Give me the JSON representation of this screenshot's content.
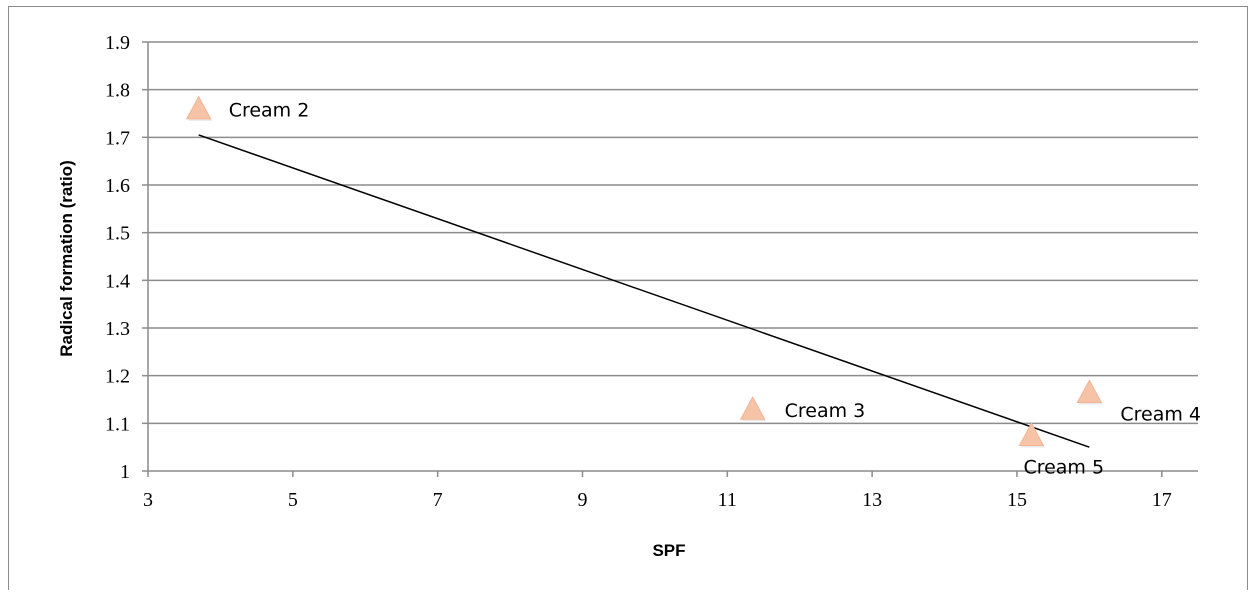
{
  "chart_data": {
    "type": "scatter",
    "title": "",
    "xlabel": "SPF",
    "ylabel": "Radical formation (ratio)",
    "xlim": [
      3,
      17.5
    ],
    "ylim": [
      1,
      1.9
    ],
    "xticks": [
      3,
      5,
      7,
      9,
      11,
      13,
      15,
      17
    ],
    "yticks": [
      1,
      1.1,
      1.2,
      1.3,
      1.4,
      1.5,
      1.6,
      1.7,
      1.8,
      1.9
    ],
    "ytick_labels": [
      "1",
      "1.1",
      "1.2",
      "1.3",
      "1.4",
      "1.5",
      "1.6",
      "1.7",
      "1.8",
      "1.9"
    ],
    "grid": "horizontal",
    "legend": "none",
    "marker": "triangle",
    "marker_color": "#f7c3a6",
    "points": [
      {
        "label": "Cream 2",
        "x": 3.7,
        "y": 1.76
      },
      {
        "label": "Cream 3",
        "x": 11.35,
        "y": 1.13
      },
      {
        "label": "Cream 4",
        "x": 16.0,
        "y": 1.165
      },
      {
        "label": "Cream 5",
        "x": 15.2,
        "y": 1.075
      }
    ],
    "trendline": {
      "type": "linear",
      "color": "#000000",
      "x": [
        3.7,
        16.0
      ],
      "y": [
        1.705,
        1.05
      ]
    }
  }
}
